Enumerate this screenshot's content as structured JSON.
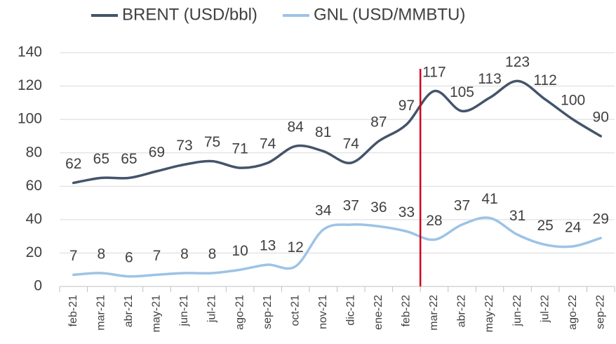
{
  "chart_data": {
    "type": "line",
    "categories": [
      "feb-21",
      "mar-21",
      "abr-21",
      "may-21",
      "jun-21",
      "jul-21",
      "ago-21",
      "sep-21",
      "oct-21",
      "nov-21",
      "dic-21",
      "ene-22",
      "feb-22",
      "mar-22",
      "abr-22",
      "may-22",
      "jun-22",
      "jul-22",
      "ago-22",
      "sep-22"
    ],
    "series": [
      {
        "name": "BRENT (USD/bbl)",
        "color": "#44546a",
        "values": [
          62,
          65,
          65,
          69,
          73,
          75,
          71,
          74,
          84,
          81,
          74,
          87,
          97,
          117,
          105,
          113,
          123,
          112,
          100,
          90
        ]
      },
      {
        "name": "GNL (USD/MMBTU)",
        "color": "#9dc3e6",
        "values": [
          7,
          8,
          6,
          7,
          8,
          8,
          10,
          13,
          12,
          34,
          37,
          36,
          33,
          28,
          37,
          41,
          31,
          25,
          24,
          29
        ]
      }
    ],
    "ylim": [
      0,
      140
    ],
    "yticks": [
      0,
      20,
      40,
      60,
      80,
      100,
      120,
      140
    ],
    "grid": true,
    "legend": "top"
  }
}
